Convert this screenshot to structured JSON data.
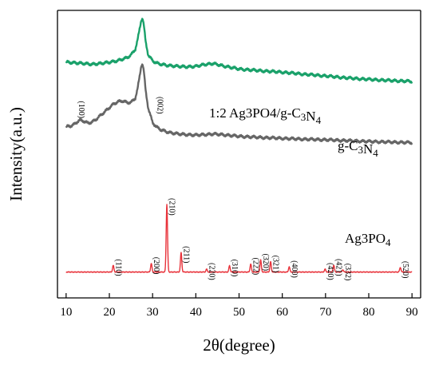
{
  "chart_data": {
    "type": "line",
    "xlabel": "2θ(degree)",
    "ylabel": "Intensity(a.u.)",
    "xlim": [
      8,
      92
    ],
    "xticks": [
      10,
      20,
      30,
      40,
      50,
      60,
      70,
      80,
      90
    ],
    "ylim": [
      0,
      100
    ],
    "grid": false,
    "legend": "none",
    "colors": {
      "composite": "#1aa16a",
      "gc3n4": "#666666",
      "ag3po4": "#e8323a",
      "axis": "#000000"
    },
    "series": [
      {
        "name": "1:2 Ag3PO4/g-C3N4",
        "label_parts": [
          {
            "t": "1:2 Ag3PO4/g-C",
            "sub": false
          },
          {
            "t": "3",
            "sub": true
          },
          {
            "t": "N",
            "sub": false
          },
          {
            "t": "4",
            "sub": true
          }
        ],
        "color": "#1aa16a",
        "x": [
          10,
          12,
          14,
          16,
          18,
          20,
          22,
          24,
          25,
          26,
          26.5,
          27,
          27.4,
          27.7,
          28,
          28.4,
          29,
          30,
          31,
          32,
          34,
          36,
          38,
          40,
          42,
          44,
          46,
          48,
          50,
          55,
          60,
          65,
          70,
          75,
          80,
          85,
          90
        ],
        "y": [
          82.0,
          81.8,
          81.5,
          81.3,
          81.5,
          82.0,
          82.5,
          83.5,
          84.5,
          86.5,
          89.5,
          93.5,
          96.8,
          97.2,
          94.5,
          89.0,
          84.5,
          82.5,
          81.6,
          81.2,
          80.8,
          80.5,
          80.4,
          80.5,
          81.2,
          81.5,
          80.8,
          80.2,
          79.6,
          79.0,
          78.5,
          77.8,
          77.2,
          76.5,
          76.0,
          75.6,
          75.3
        ]
      },
      {
        "name": "g-C3N4",
        "label_parts": [
          {
            "t": "g-C",
            "sub": false
          },
          {
            "t": "3",
            "sub": true
          },
          {
            "t": "N",
            "sub": false
          },
          {
            "t": "4",
            "sub": true
          }
        ],
        "color": "#666666",
        "x": [
          10,
          11,
          12,
          13,
          14,
          15,
          16,
          17,
          18,
          19,
          20,
          21,
          22,
          23,
          24,
          25,
          26,
          26.5,
          27,
          27.4,
          27.7,
          28,
          28.4,
          29,
          30,
          31,
          32,
          34,
          36,
          38,
          40,
          42,
          44,
          46,
          48,
          50,
          55,
          60,
          65,
          70,
          75,
          80,
          85,
          90
        ],
        "y": [
          59.5,
          59.8,
          60.5,
          61.8,
          61.5,
          60.8,
          61.2,
          62.2,
          63.5,
          64.8,
          66.2,
          67.5,
          68.2,
          68.5,
          68.0,
          68.0,
          69.5,
          72.5,
          77.0,
          81.0,
          81.3,
          78.5,
          72.0,
          66.0,
          61.0,
          59.3,
          58.4,
          57.5,
          57.0,
          56.8,
          56.6,
          56.8,
          57.0,
          56.8,
          56.5,
          56.2,
          55.8,
          55.5,
          55.2,
          55.0,
          54.7,
          54.4,
          54.2,
          54.0
        ]
      },
      {
        "name": "Ag3PO4",
        "label_parts": [
          {
            "t": "Ag3PO",
            "sub": false
          },
          {
            "t": "4",
            "sub": true
          }
        ],
        "color": "#e8323a",
        "baseline": 9.0,
        "peak_width": 0.22,
        "peaks": [
          {
            "x": 20.9,
            "h": 2.3,
            "label": "(110)"
          },
          {
            "x": 29.7,
            "h": 3.0,
            "label": "(200)"
          },
          {
            "x": 33.3,
            "h": 23.5,
            "label": "(210)"
          },
          {
            "x": 36.6,
            "h": 6.8,
            "label": "(211)"
          },
          {
            "x": 42.5,
            "h": 1.0,
            "label": "(220)"
          },
          {
            "x": 47.8,
            "h": 2.2,
            "label": "(310)"
          },
          {
            "x": 52.7,
            "h": 2.8,
            "label": "(222)"
          },
          {
            "x": 55.0,
            "h": 4.2,
            "label": "(320)"
          },
          {
            "x": 57.3,
            "h": 3.6,
            "label": "(321)"
          },
          {
            "x": 61.6,
            "h": 1.8,
            "label": "(400)"
          },
          {
            "x": 69.9,
            "h": 1.0,
            "label": "(420)"
          },
          {
            "x": 71.9,
            "h": 2.4,
            "label": "(421)"
          },
          {
            "x": 74.0,
            "h": 0.8,
            "label": "(332)"
          },
          {
            "x": 87.3,
            "h": 1.6,
            "label": "(520)"
          }
        ]
      }
    ],
    "annotations": [
      {
        "text": "(100)",
        "x": 13.0,
        "y": 65.5
      },
      {
        "text": "(002)",
        "x": 31.2,
        "y": 67.0
      }
    ]
  }
}
